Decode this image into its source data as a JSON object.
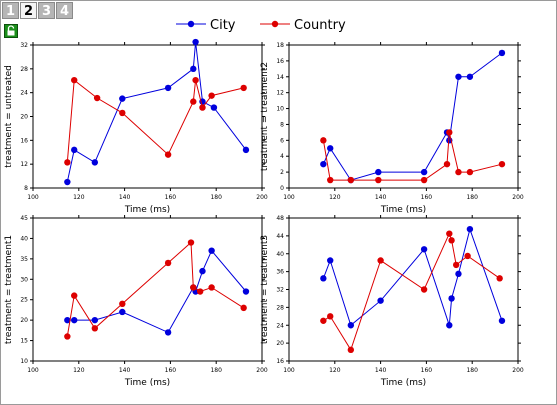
{
  "tabs": [
    {
      "label": "1",
      "active": false
    },
    {
      "label": "2",
      "active": true
    },
    {
      "label": "3",
      "active": false
    },
    {
      "label": "4",
      "active": false
    }
  ],
  "toolbar": {
    "lock_icon": "lock-icon"
  },
  "colors": {
    "city": "#0000dd",
    "country": "#dd0000"
  },
  "chart_data": [
    {
      "type": "line",
      "title": "",
      "xlabel": "Time (ms)",
      "ylabel": "treatment = untreated",
      "xlim": [
        100,
        200
      ],
      "ylim": [
        8,
        32
      ],
      "xticks": [
        100,
        120,
        140,
        160,
        180,
        200
      ],
      "yticks": [
        8,
        12,
        16,
        20,
        24,
        28,
        32
      ],
      "series": [
        {
          "name": "City",
          "points": [
            [
              115,
              9
            ],
            [
              118,
              14.4
            ],
            [
              127,
              12.3
            ],
            [
              139,
              23
            ],
            [
              159,
              24.8
            ],
            [
              170,
              28
            ],
            [
              171,
              32.5
            ],
            [
              174,
              22.5
            ],
            [
              179,
              21.5
            ],
            [
              193,
              14.4
            ]
          ]
        },
        {
          "name": "Country",
          "points": [
            [
              115,
              12.3
            ],
            [
              118,
              26.1
            ],
            [
              128,
              23.1
            ],
            [
              139,
              20.6
            ],
            [
              159,
              13.6
            ],
            [
              170,
              22.5
            ],
            [
              171,
              26.1
            ],
            [
              174,
              21.5
            ],
            [
              178,
              23.5
            ],
            [
              192,
              24.8
            ]
          ]
        }
      ]
    },
    {
      "type": "line",
      "title": "",
      "xlabel": "Time (ms)",
      "ylabel": "treatment = treatment2",
      "xlim": [
        100,
        200
      ],
      "ylim": [
        0,
        18
      ],
      "xticks": [
        100,
        120,
        140,
        160,
        180,
        200
      ],
      "yticks": [
        0,
        2,
        4,
        6,
        8,
        10,
        12,
        14,
        16,
        18
      ],
      "series": [
        {
          "name": "City",
          "points": [
            [
              115,
              3
            ],
            [
              118,
              5
            ],
            [
              127,
              1
            ],
            [
              139,
              2
            ],
            [
              159,
              2
            ],
            [
              169,
              7
            ],
            [
              170,
              6
            ],
            [
              174,
              14
            ],
            [
              179,
              14
            ],
            [
              193,
              17
            ]
          ]
        },
        {
          "name": "Country",
          "points": [
            [
              115,
              6
            ],
            [
              118,
              1
            ],
            [
              127,
              1
            ],
            [
              139,
              1
            ],
            [
              159,
              1
            ],
            [
              169,
              3
            ],
            [
              170,
              7
            ],
            [
              174,
              2
            ],
            [
              179,
              2
            ],
            [
              193,
              3
            ]
          ]
        }
      ]
    },
    {
      "type": "line",
      "title": "",
      "xlabel": "Time (ms)",
      "ylabel": "treatment = treatment1",
      "xlim": [
        100,
        200
      ],
      "ylim": [
        10,
        45
      ],
      "xticks": [
        100,
        120,
        140,
        160,
        180,
        200
      ],
      "yticks": [
        10,
        15,
        20,
        25,
        30,
        35,
        40,
        45
      ],
      "series": [
        {
          "name": "City",
          "points": [
            [
              115,
              20
            ],
            [
              118,
              20
            ],
            [
              127,
              20
            ],
            [
              139,
              22
            ],
            [
              159,
              17
            ],
            [
              170,
              28
            ],
            [
              171,
              27
            ],
            [
              174,
              32
            ],
            [
              178,
              37
            ],
            [
              193,
              27
            ]
          ]
        },
        {
          "name": "Country",
          "points": [
            [
              115,
              16
            ],
            [
              118,
              26
            ],
            [
              127,
              18
            ],
            [
              139,
              24
            ],
            [
              159,
              34
            ],
            [
              169,
              39
            ],
            [
              170,
              28
            ],
            [
              173,
              27
            ],
            [
              178,
              28
            ],
            [
              192,
              23
            ]
          ]
        }
      ]
    },
    {
      "type": "line",
      "title": "",
      "xlabel": "Time (ms)",
      "ylabel": "treatment = treatment3",
      "xlim": [
        100,
        200
      ],
      "ylim": [
        16,
        48
      ],
      "xticks": [
        100,
        120,
        140,
        160,
        180,
        200
      ],
      "yticks": [
        16,
        20,
        24,
        28,
        32,
        36,
        40,
        44,
        48
      ],
      "series": [
        {
          "name": "City",
          "points": [
            [
              115,
              34.5
            ],
            [
              118,
              38.5
            ],
            [
              127,
              24
            ],
            [
              140,
              29.5
            ],
            [
              159,
              41
            ],
            [
              170,
              24
            ],
            [
              171,
              30
            ],
            [
              174,
              35.5
            ],
            [
              179,
              45.5
            ],
            [
              193,
              25
            ]
          ]
        },
        {
          "name": "Country",
          "points": [
            [
              115,
              25
            ],
            [
              118,
              26
            ],
            [
              127,
              18.5
            ],
            [
              140,
              38.5
            ],
            [
              159,
              32
            ],
            [
              170,
              44.5
            ],
            [
              171,
              43
            ],
            [
              173,
              37.5
            ],
            [
              178,
              39.5
            ],
            [
              192,
              34.5
            ]
          ]
        }
      ]
    }
  ]
}
